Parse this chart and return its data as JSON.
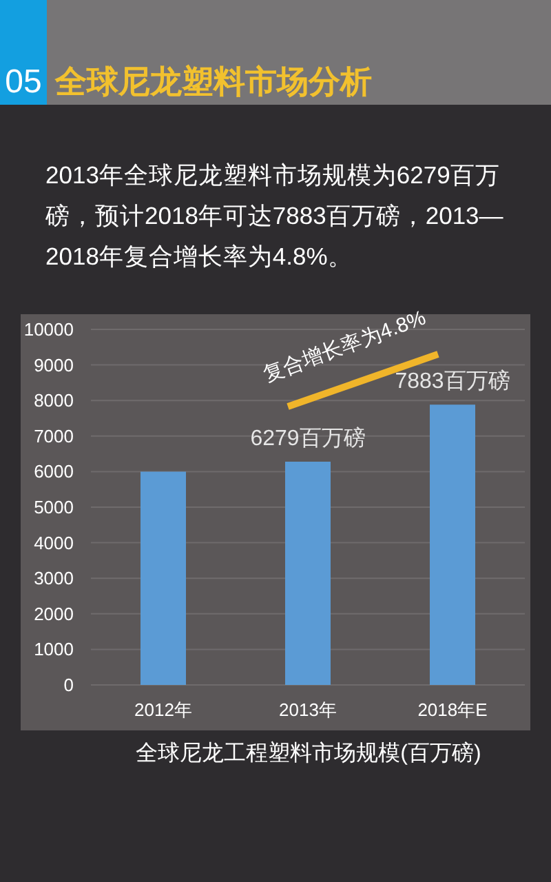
{
  "chart_data": {
    "type": "bar",
    "title": "全球尼龙塑料市场分析",
    "subtitle": "2013年全球尼龙塑料市场规模为6279百万磅，预计2018年可达7883百万磅，2013—2018年复合增长率为4.8%。",
    "xlabel": "全球尼龙工程塑料市场规模(百万磅)",
    "annotations": [
      "05",
      "复合增长率为4.8%"
    ],
    "categories": [
      "2012年",
      "2013年",
      "2018年E"
    ],
    "values": [
      6000,
      6279,
      7883
    ],
    "value_labels": [
      null,
      "6279百万磅",
      "7883百万磅"
    ],
    "color": "#5b9bd5",
    "ylim": [
      0,
      10000
    ],
    "yticks": [
      0,
      1000,
      2000,
      3000,
      4000,
      5000,
      6000,
      7000,
      8000,
      9000,
      10000
    ],
    "grid": "y"
  }
}
